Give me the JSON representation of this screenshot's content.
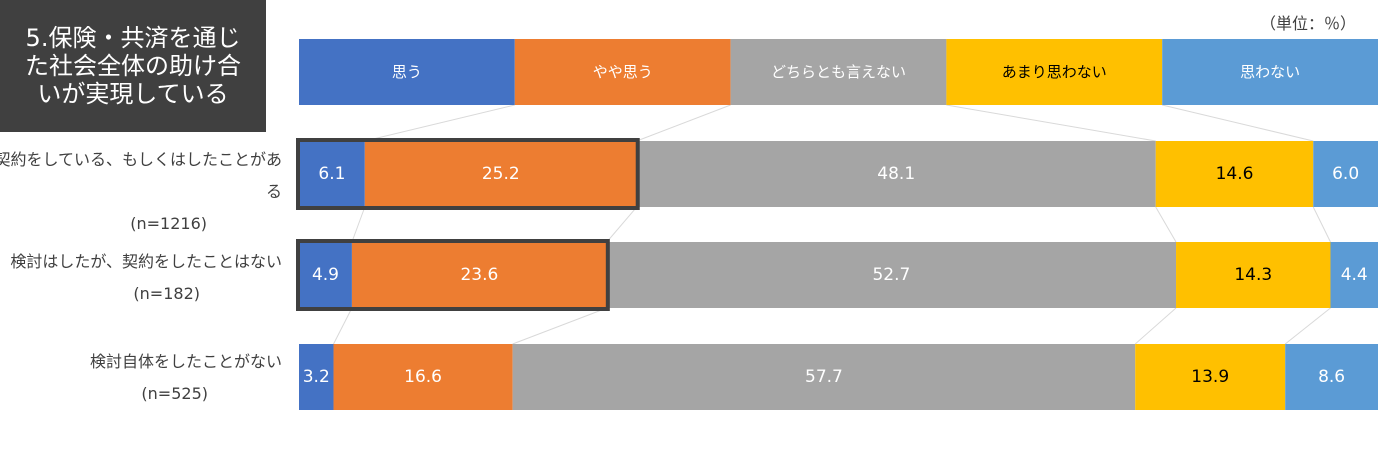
{
  "title": "5.保険・共済を通じた社会全体の助け合いが実現している",
  "unit": "（単位：％）",
  "colors": [
    "#4472C4",
    "#ED7D31",
    "#A5A5A5",
    "#FFC000",
    "#5B9BD5"
  ],
  "chart_data": {
    "type": "bar",
    "orientation": "horizontal",
    "stacked": "percent",
    "legend_position": "top",
    "categories": [
      "思う",
      "やや思う",
      "どちらとも言えない",
      "あまり思わない",
      "思わない"
    ],
    "rows": [
      {
        "label": "契約をしている、もしくはしたことがある",
        "n": "(n=1216)",
        "values": [
          6.1,
          25.2,
          48.1,
          14.6,
          6.0
        ],
        "highlight_first": 2
      },
      {
        "label": "検討はしたが、契約をしたことはない",
        "n": "(n=182)",
        "values": [
          4.9,
          23.6,
          52.7,
          14.3,
          4.4
        ],
        "highlight_first": 2
      },
      {
        "label": "検討自体をしたことがない",
        "n": "(n=525)",
        "values": [
          3.2,
          16.6,
          57.7,
          13.9,
          8.6
        ],
        "highlight_first": 0
      }
    ]
  }
}
